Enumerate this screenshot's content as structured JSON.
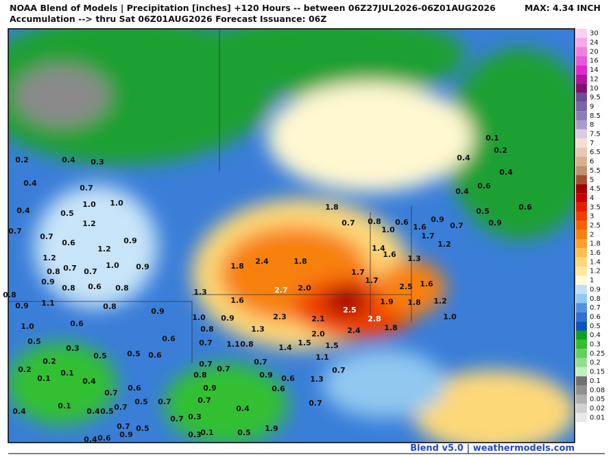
{
  "header": {
    "title_line1": "NOAA Blend of Models | Precipitation [inches] +120 Hours -- between 06Z27JUL2026-06Z01AUG2026",
    "title_line2": "Accumulation --> thru Sat 06Z01AUG2026   Forecast Issuance: 06Z",
    "max": "MAX: 4.34 INCH"
  },
  "colorbar": {
    "labels": [
      "30",
      "24",
      "20",
      "16",
      "14",
      "12",
      "10",
      "9.5",
      "9",
      "8.5",
      "8",
      "7.5",
      "7",
      "6.5",
      "6",
      "5.5",
      "5",
      "4.5",
      "4",
      "3.5",
      "3",
      "2.5",
      "2",
      "1.8",
      "1.6",
      "1.4",
      "1.2",
      "1",
      "0.9",
      "0.8",
      "0.7",
      "0.6",
      "0.5",
      "0.4",
      "0.3",
      "0.25",
      "0.2",
      "0.15",
      "0.1",
      "0.08",
      "0.05",
      "0.02",
      "0.01"
    ],
    "colors": [
      "#fbd0f2",
      "#f6a8ea",
      "#f080e0",
      "#ea58d8",
      "#e028c8",
      "#b0149c",
      "#801070",
      "#6a4d9a",
      "#7a64aa",
      "#8c7cb8",
      "#a89ccc",
      "#d8cce4",
      "#f4e0d0",
      "#e8c8b0",
      "#d8b090",
      "#c09070",
      "#a05030",
      "#a00000",
      "#c80000",
      "#e02000",
      "#f04000",
      "#f56000",
      "#f88010",
      "#fba030",
      "#fdc050",
      "#fdd878",
      "#fee8a0",
      "#fffdd8",
      "#c0e0f8",
      "#90c8f0",
      "#5090e0",
      "#3070d0",
      "#1050c0",
      "#10a020",
      "#30c030",
      "#60d060",
      "#90e090",
      "#c0f0c0",
      "#707070",
      "#909090",
      "#b0b0b0",
      "#d0d0d0",
      "#e8e8e8"
    ]
  },
  "map_labels": [
    "0.2",
    "0.4",
    "0.3",
    "0.4",
    "0.7",
    "0.4",
    "0.5",
    "1.0",
    "1.0",
    "1.2",
    "0.7",
    "0.7",
    "0.6",
    "0.9",
    "1.2",
    "1.2",
    "0.8",
    "0.7",
    "0.7",
    "1.0",
    "0.9",
    "0.9",
    "0.6",
    "0.8",
    "0.8",
    "0.8",
    "0.9",
    "1.1",
    "0.8",
    "0.9",
    "0.6",
    "1.0",
    "0.5",
    "0.3",
    "0.6",
    "0.5",
    "0.5",
    "0.6",
    "0.2",
    "0.2",
    "0.1",
    "0.1",
    "0.4",
    "0.6",
    "0.7",
    "0.1",
    "0.5",
    "0.7",
    "0.4",
    "0.4",
    "0.5",
    "0.7",
    "0.7",
    "0.5",
    "0.9",
    "0.4",
    "0.6",
    "0.7",
    "0.3",
    "0.3",
    "0.1",
    "0.5",
    "0.4",
    "1.9",
    "1.8",
    "0.7",
    "0.8",
    "1.0",
    "0.6",
    "1.6",
    "0.9",
    "0.7",
    "1.7",
    "1.2",
    "1.4",
    "1.6",
    "1.3",
    "1.8",
    "2.4",
    "1.8",
    "1.7",
    "1.7",
    "2.5",
    "1.6",
    "2.7",
    "2.0",
    "1.3",
    "1.6",
    "2.5",
    "1.9",
    "1.8",
    "1.2",
    "2.3",
    "2.1",
    "2.8",
    "1.0",
    "1.0",
    "0.9",
    "0.8",
    "1.3",
    "2.0",
    "2.4",
    "1.8",
    "0.7",
    "1.1",
    "0.8",
    "1.5",
    "1.5",
    "1.4",
    "1.1",
    "0.7",
    "0.7",
    "0.7",
    "0.7",
    "0.8",
    "0.9",
    "0.6",
    "1.3",
    "0.9",
    "0.6",
    "0.7",
    "0.7",
    "0.1",
    "0.2",
    "0.4",
    "0.4",
    "0.6",
    "0.4",
    "0.5",
    "0.6",
    "0.9"
  ],
  "footer": "Blend v5.0 | weathermodels.com"
}
